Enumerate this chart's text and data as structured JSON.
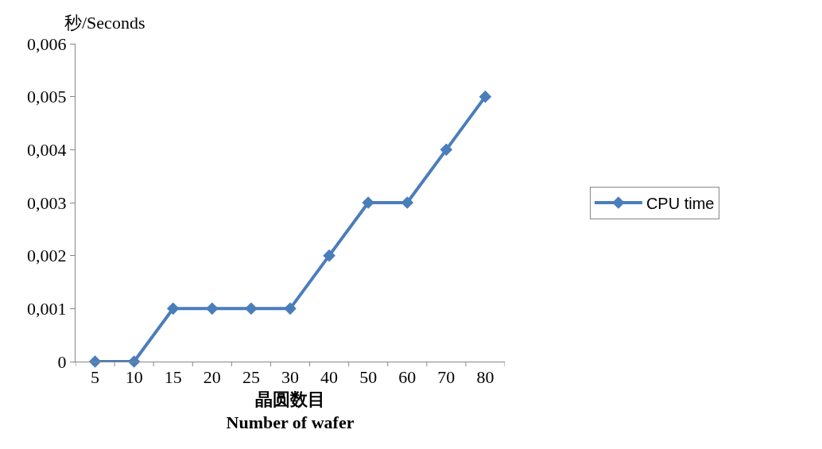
{
  "chart_data": {
    "type": "line",
    "ylabel": "秒/Seconds",
    "xlabel": "晶圆数目\nNumber of wafer",
    "categories": [
      "5",
      "10",
      "15",
      "20",
      "25",
      "30",
      "40",
      "50",
      "60",
      "70",
      "80"
    ],
    "series": [
      {
        "name": "CPU time",
        "color": "#4a7ebb",
        "values": [
          0,
          0,
          0.001,
          0.001,
          0.001,
          0.001,
          0.002,
          0.003,
          0.003,
          0.004,
          0.005
        ]
      }
    ],
    "ylim": [
      0,
      0.006
    ],
    "yticks": [
      0,
      {
        "value": 0.001,
        "label": "0,001"
      },
      {
        "value": 0.002,
        "label": "0,002"
      },
      {
        "value": 0.003,
        "label": "0,003"
      },
      {
        "value": 0.004,
        "label": "0,004"
      },
      {
        "value": 0.005,
        "label": "0,005"
      },
      {
        "value": 0.006,
        "label": "0,006"
      }
    ],
    "legend": "right",
    "marker": "diamond",
    "line_style": "solid"
  }
}
